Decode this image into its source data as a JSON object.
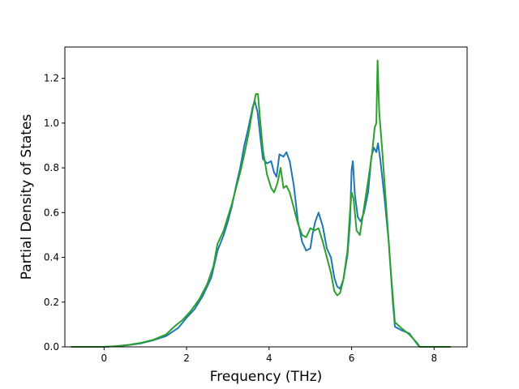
{
  "chart_data": {
    "type": "line",
    "title": "",
    "xlabel": "Frequency (THz)",
    "ylabel": "Partial Density of States",
    "xlim": [
      -0.95,
      8.8
    ],
    "ylim": [
      0.0,
      1.34
    ],
    "xticks": [
      0,
      2,
      4,
      6,
      8
    ],
    "xtick_labels": [
      "0",
      "2",
      "4",
      "6",
      "8"
    ],
    "yticks": [
      0.0,
      0.2,
      0.4,
      0.6,
      0.8,
      1.0,
      1.2
    ],
    "ytick_labels": [
      "0.0",
      "0.2",
      "0.4",
      "0.6",
      "0.8",
      "1.0",
      "1.2"
    ],
    "grid": false,
    "legend": "none",
    "series": [
      {
        "color": "#1f77b4",
        "points": [
          [
            -0.8,
            0.0
          ],
          [
            0.0,
            0.0
          ],
          [
            0.3,
            0.003
          ],
          [
            0.6,
            0.008
          ],
          [
            0.9,
            0.016
          ],
          [
            1.2,
            0.03
          ],
          [
            1.5,
            0.048
          ],
          [
            1.8,
            0.085
          ],
          [
            2.0,
            0.13
          ],
          [
            2.2,
            0.17
          ],
          [
            2.4,
            0.23
          ],
          [
            2.6,
            0.31
          ],
          [
            2.75,
            0.43
          ],
          [
            2.9,
            0.5
          ],
          [
            3.0,
            0.56
          ],
          [
            3.1,
            0.63
          ],
          [
            3.2,
            0.72
          ],
          [
            3.3,
            0.8
          ],
          [
            3.4,
            0.9
          ],
          [
            3.5,
            0.98
          ],
          [
            3.6,
            1.07
          ],
          [
            3.65,
            1.1
          ],
          [
            3.72,
            1.05
          ],
          [
            3.78,
            0.95
          ],
          [
            3.85,
            0.84
          ],
          [
            3.95,
            0.82
          ],
          [
            4.05,
            0.83
          ],
          [
            4.12,
            0.78
          ],
          [
            4.18,
            0.76
          ],
          [
            4.25,
            0.86
          ],
          [
            4.35,
            0.85
          ],
          [
            4.42,
            0.87
          ],
          [
            4.5,
            0.83
          ],
          [
            4.6,
            0.72
          ],
          [
            4.7,
            0.56
          ],
          [
            4.8,
            0.47
          ],
          [
            4.9,
            0.43
          ],
          [
            5.0,
            0.44
          ],
          [
            5.05,
            0.5
          ],
          [
            5.12,
            0.56
          ],
          [
            5.2,
            0.6
          ],
          [
            5.3,
            0.54
          ],
          [
            5.4,
            0.44
          ],
          [
            5.5,
            0.4
          ],
          [
            5.58,
            0.31
          ],
          [
            5.65,
            0.27
          ],
          [
            5.72,
            0.26
          ],
          [
            5.8,
            0.3
          ],
          [
            5.9,
            0.41
          ],
          [
            5.96,
            0.55
          ],
          [
            6.0,
            0.79
          ],
          [
            6.03,
            0.83
          ],
          [
            6.08,
            0.68
          ],
          [
            6.15,
            0.58
          ],
          [
            6.22,
            0.56
          ],
          [
            6.3,
            0.6
          ],
          [
            6.4,
            0.69
          ],
          [
            6.48,
            0.85
          ],
          [
            6.54,
            0.89
          ],
          [
            6.6,
            0.87
          ],
          [
            6.64,
            0.91
          ],
          [
            6.7,
            0.83
          ],
          [
            6.8,
            0.66
          ],
          [
            6.9,
            0.47
          ],
          [
            7.0,
            0.2
          ],
          [
            7.05,
            0.09
          ],
          [
            7.2,
            0.075
          ],
          [
            7.4,
            0.06
          ],
          [
            7.6,
            0.01
          ],
          [
            7.65,
            0.0
          ],
          [
            8.4,
            0.0
          ]
        ]
      },
      {
        "color": "#2ca02c",
        "points": [
          [
            -0.8,
            0.0
          ],
          [
            0.0,
            0.0
          ],
          [
            0.3,
            0.003
          ],
          [
            0.6,
            0.009
          ],
          [
            0.9,
            0.018
          ],
          [
            1.2,
            0.032
          ],
          [
            1.5,
            0.055
          ],
          [
            1.7,
            0.09
          ],
          [
            1.9,
            0.12
          ],
          [
            2.1,
            0.16
          ],
          [
            2.3,
            0.21
          ],
          [
            2.5,
            0.28
          ],
          [
            2.65,
            0.36
          ],
          [
            2.75,
            0.46
          ],
          [
            2.9,
            0.52
          ],
          [
            3.0,
            0.58
          ],
          [
            3.1,
            0.64
          ],
          [
            3.2,
            0.71
          ],
          [
            3.3,
            0.78
          ],
          [
            3.4,
            0.86
          ],
          [
            3.5,
            0.95
          ],
          [
            3.6,
            1.06
          ],
          [
            3.68,
            1.13
          ],
          [
            3.73,
            1.13
          ],
          [
            3.78,
            1.02
          ],
          [
            3.85,
            0.88
          ],
          [
            3.95,
            0.77
          ],
          [
            4.05,
            0.71
          ],
          [
            4.12,
            0.69
          ],
          [
            4.2,
            0.73
          ],
          [
            4.28,
            0.8
          ],
          [
            4.35,
            0.71
          ],
          [
            4.42,
            0.72
          ],
          [
            4.5,
            0.69
          ],
          [
            4.6,
            0.62
          ],
          [
            4.7,
            0.55
          ],
          [
            4.8,
            0.5
          ],
          [
            4.9,
            0.49
          ],
          [
            5.0,
            0.53
          ],
          [
            5.1,
            0.52
          ],
          [
            5.2,
            0.53
          ],
          [
            5.3,
            0.47
          ],
          [
            5.4,
            0.4
          ],
          [
            5.5,
            0.33
          ],
          [
            5.58,
            0.25
          ],
          [
            5.65,
            0.23
          ],
          [
            5.72,
            0.24
          ],
          [
            5.8,
            0.3
          ],
          [
            5.9,
            0.43
          ],
          [
            5.96,
            0.6
          ],
          [
            6.0,
            0.69
          ],
          [
            6.05,
            0.66
          ],
          [
            6.12,
            0.52
          ],
          [
            6.2,
            0.5
          ],
          [
            6.3,
            0.62
          ],
          [
            6.4,
            0.74
          ],
          [
            6.5,
            0.87
          ],
          [
            6.56,
            0.98
          ],
          [
            6.6,
            1.0
          ],
          [
            6.63,
            1.28
          ],
          [
            6.67,
            1.05
          ],
          [
            6.75,
            0.86
          ],
          [
            6.85,
            0.6
          ],
          [
            6.95,
            0.34
          ],
          [
            7.05,
            0.11
          ],
          [
            7.2,
            0.085
          ],
          [
            7.4,
            0.055
          ],
          [
            7.6,
            0.015
          ],
          [
            7.65,
            0.0
          ],
          [
            8.4,
            0.0
          ]
        ]
      }
    ]
  }
}
